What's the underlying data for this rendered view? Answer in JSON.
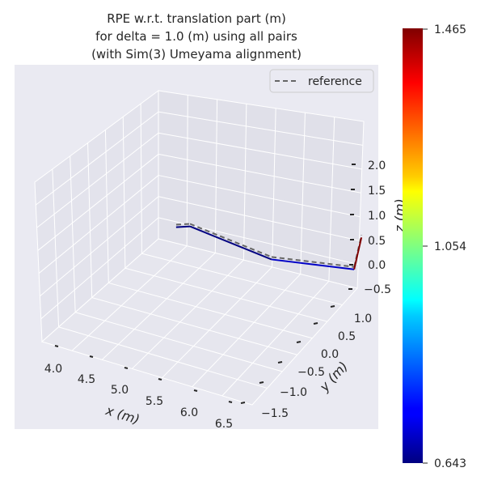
{
  "chart_data": {
    "type": "line",
    "title_lines": [
      "RPE w.r.t. translation part (m)",
      "for delta = 1.0 (m) using all pairs",
      "(with Sim(3) Umeyama alignment)"
    ],
    "xlabel": "x (m)",
    "ylabel": "y (m)",
    "zlabel": "z (m)",
    "xticks": [
      "4.0",
      "4.5",
      "5.0",
      "5.5",
      "6.0",
      "6.5"
    ],
    "yticks": [
      "−1.5",
      "−1.0",
      "−0.5",
      "0.0",
      "0.5",
      "1.0"
    ],
    "zticks": [
      "−0.5",
      "0.0",
      "0.5",
      "1.0",
      "1.5",
      "2.0"
    ],
    "legend": {
      "label": "reference",
      "placement": "top-right"
    },
    "colorbar": {
      "colormap": "jet",
      "ticks": [
        "1.465",
        "1.054",
        "0.643"
      ],
      "min": 0.643,
      "max": 1.465
    },
    "reference_path": [
      [
        3.95,
        -0.55,
        0.0
      ],
      [
        4.15,
        -0.55,
        0.1
      ],
      [
        5.45,
        -0.35,
        0.15
      ],
      [
        6.6,
        -0.45,
        0.35
      ],
      [
        6.9,
        -0.05,
        1.45
      ]
    ],
    "estimate_path": [
      {
        "xyz": [
          3.95,
          -0.55,
          -0.05
        ],
        "rpe": 0.643
      },
      {
        "xyz": [
          4.15,
          -0.55,
          0.05
        ],
        "rpe": 0.643
      },
      {
        "xyz": [
          5.45,
          -0.35,
          0.1
        ],
        "rpe": 0.643
      },
      {
        "xyz": [
          6.6,
          -0.45,
          0.3
        ],
        "rpe": 0.7
      },
      {
        "xyz": [
          6.9,
          -0.05,
          1.4
        ],
        "rpe": 1.465
      }
    ]
  }
}
